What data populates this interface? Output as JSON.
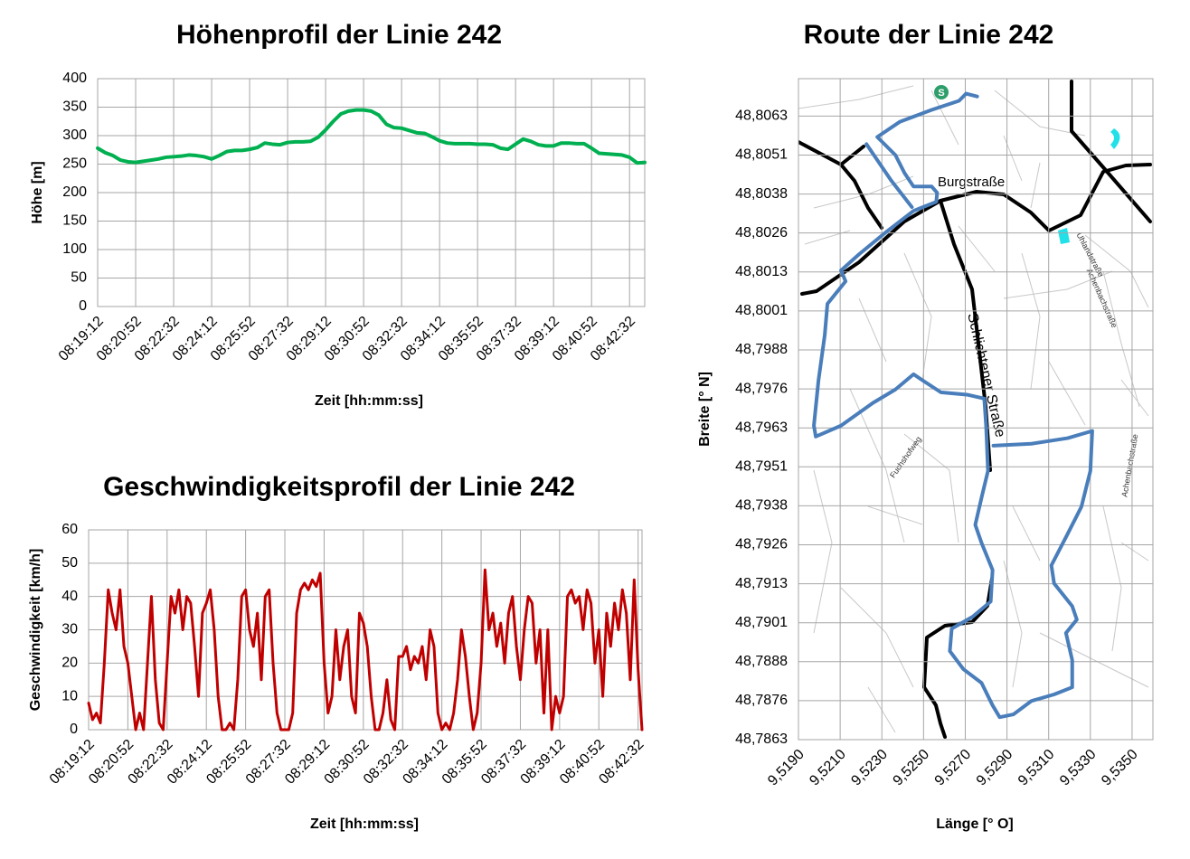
{
  "chart_data": [
    {
      "type": "line",
      "title": "Höhenprofil der Linie 242",
      "x_label": "Zeit [hh:mm:ss]",
      "y_label": "Höhe [m]",
      "categories": [
        "08:19:12",
        null,
        null,
        null,
        null,
        "08:20:52",
        null,
        null,
        null,
        null,
        "08:22:32",
        null,
        null,
        null,
        null,
        "08:24:12",
        null,
        null,
        null,
        null,
        "08:25:52",
        null,
        null,
        null,
        null,
        "08:27:32",
        null,
        null,
        null,
        null,
        "08:29:12",
        null,
        null,
        null,
        null,
        "08:30:52",
        null,
        null,
        null,
        null,
        "08:32:32",
        null,
        null,
        null,
        null,
        "08:34:12",
        null,
        null,
        null,
        null,
        "08:35:52",
        null,
        null,
        null,
        null,
        "08:37:32",
        null,
        null,
        null,
        null,
        "08:39:12",
        null,
        null,
        null,
        null,
        "08:40:52",
        null,
        null,
        null,
        null,
        "08:42:32",
        null,
        null
      ],
      "values": [
        278,
        270,
        265,
        257,
        254,
        253,
        255,
        257,
        259,
        262,
        263,
        264,
        266,
        265,
        263,
        259,
        265,
        272,
        274,
        274,
        276,
        279,
        287,
        285,
        284,
        288,
        289,
        289,
        290,
        297,
        310,
        325,
        338,
        343,
        345,
        345,
        343,
        336,
        320,
        314,
        313,
        309,
        305,
        304,
        298,
        291,
        287,
        286,
        286,
        286,
        285,
        285,
        284,
        278,
        276,
        285,
        294,
        290,
        284,
        282,
        282,
        287,
        287,
        286,
        286,
        278,
        269,
        268,
        267,
        266,
        262,
        252,
        253
      ],
      "color": "#00b050",
      "ylim": [
        0,
        400
      ],
      "yticks": [
        0,
        50,
        100,
        150,
        200,
        250,
        300,
        350,
        400
      ],
      "grid": true
    },
    {
      "type": "line",
      "title": "Geschwindigkeitsprofil  der Linie 242",
      "x_label": "Zeit [hh:mm:ss]",
      "y_label": "Geschwindigkeit [km/h]",
      "categories": [
        "08:19:12",
        null,
        null,
        null,
        null,
        null,
        null,
        null,
        null,
        null,
        "08:20:52",
        null,
        null,
        null,
        null,
        null,
        null,
        null,
        null,
        null,
        "08:22:32",
        null,
        null,
        null,
        null,
        null,
        null,
        null,
        null,
        null,
        "08:24:12",
        null,
        null,
        null,
        null,
        null,
        null,
        null,
        null,
        null,
        "08:25:52",
        null,
        null,
        null,
        null,
        null,
        null,
        null,
        null,
        null,
        "08:27:32",
        null,
        null,
        null,
        null,
        null,
        null,
        null,
        null,
        null,
        "08:29:12",
        null,
        null,
        null,
        null,
        null,
        null,
        null,
        null,
        null,
        "08:30:52",
        null,
        null,
        null,
        null,
        null,
        null,
        null,
        null,
        null,
        "08:32:32",
        null,
        null,
        null,
        null,
        null,
        null,
        null,
        null,
        null,
        "08:34:12",
        null,
        null,
        null,
        null,
        null,
        null,
        null,
        null,
        null,
        "08:35:52",
        null,
        null,
        null,
        null,
        null,
        null,
        null,
        null,
        null,
        "08:37:32",
        null,
        null,
        null,
        null,
        null,
        null,
        null,
        null,
        null,
        "08:39:12",
        null,
        null,
        null,
        null,
        null,
        null,
        null,
        null,
        null,
        "08:40:52",
        null,
        null,
        null,
        null,
        null,
        null,
        null,
        null,
        null,
        "08:42:32",
        null
      ],
      "values": [
        8,
        3,
        5,
        2,
        20,
        42,
        35,
        30,
        42,
        25,
        20,
        10,
        0,
        5,
        0,
        20,
        40,
        15,
        2,
        0,
        20,
        40,
        35,
        42,
        30,
        40,
        38,
        25,
        10,
        35,
        38,
        42,
        30,
        10,
        0,
        0,
        2,
        0,
        15,
        40,
        42,
        30,
        25,
        35,
        15,
        40,
        42,
        20,
        5,
        0,
        0,
        0,
        5,
        35,
        42,
        44,
        42,
        45,
        43,
        47,
        20,
        5,
        10,
        30,
        15,
        25,
        30,
        10,
        5,
        35,
        32,
        25,
        10,
        0,
        0,
        5,
        15,
        3,
        0,
        22,
        22,
        25,
        18,
        22,
        20,
        25,
        15,
        30,
        25,
        5,
        0,
        2,
        0,
        5,
        15,
        30,
        22,
        10,
        0,
        5,
        20,
        48,
        30,
        35,
        25,
        32,
        20,
        35,
        40,
        25,
        15,
        30,
        40,
        38,
        20,
        30,
        5,
        30,
        0,
        10,
        5,
        10,
        40,
        42,
        38,
        40,
        30,
        42,
        38,
        20,
        30,
        10,
        35,
        25,
        38,
        30,
        42,
        35,
        15,
        45,
        18,
        0
      ],
      "color": "#c00000",
      "ylim": [
        0,
        60
      ],
      "yticks": [
        0,
        10,
        20,
        30,
        40,
        50,
        60
      ],
      "grid": true
    },
    {
      "type": "line",
      "title": "Route der Linie 242",
      "x_label": "Länge [° O]",
      "y_label": "Breite [° N]",
      "x": [
        9.52757,
        9.52704,
        9.5267,
        9.52539,
        9.52387,
        9.52278,
        9.52365,
        9.52409,
        9.52452,
        9.52539,
        9.52565,
        9.52561,
        9.52452,
        9.52322,
        9.52191,
        9.52104,
        9.52126,
        9.52039,
        9.52026,
        9.51996,
        9.51974,
        9.51983,
        9.52104,
        9.52257,
        9.52365,
        9.52452,
        9.52496,
        9.52583,
        9.52713,
        9.52791,
        9.528,
        9.52809,
        9.52778,
        9.52748,
        9.52778,
        9.52831,
        9.52822,
        9.52735,
        9.52635,
        9.52626,
        9.52691,
        9.52778,
        9.52831,
        9.52865,
        9.52931,
        9.53017,
        9.53126,
        9.53213,
        9.53213,
        9.53183,
        9.53235,
        9.53213,
        9.53126,
        9.53113,
        9.53191,
        9.53257,
        9.533,
        9.53309,
        9.53191,
        9.53017,
        9.52835,
        null,
        9.52226,
        9.52344,
        9.52444
      ],
      "values": [
        48.80693,
        48.80702,
        48.80679,
        48.8065,
        48.80612,
        48.80563,
        48.80505,
        48.80447,
        48.80404,
        48.80404,
        48.80384,
        48.80355,
        48.80326,
        48.80259,
        48.80187,
        48.80135,
        48.801,
        48.80028,
        48.79927,
        48.79782,
        48.79637,
        48.79602,
        48.79637,
        48.7971,
        48.79753,
        48.79802,
        48.79782,
        48.79744,
        48.79736,
        48.79724,
        48.79637,
        48.79492,
        48.79406,
        48.79319,
        48.79261,
        48.79174,
        48.79073,
        48.79024,
        48.78986,
        48.78914,
        48.78856,
        48.78812,
        48.7874,
        48.78702,
        48.78711,
        48.78754,
        48.78775,
        48.78798,
        48.78885,
        48.78972,
        48.79015,
        48.79058,
        48.79131,
        48.79189,
        48.7929,
        48.79377,
        48.79492,
        48.7962,
        48.79597,
        48.79579,
        48.79573,
        null,
        48.8054,
        48.80424,
        48.80338
      ],
      "color": "#4a7ebb",
      "xlim": [
        9.519,
        9.536
      ],
      "ylim": [
        48.7863,
        48.8075
      ],
      "xticks": [
        {
          "value": 9.519,
          "label": "9,5190"
        },
        {
          "value": 9.521,
          "label": "9,5210"
        },
        {
          "value": 9.523,
          "label": "9,5230"
        },
        {
          "value": 9.525,
          "label": "9,5250"
        },
        {
          "value": 9.527,
          "label": "9,5270"
        },
        {
          "value": 9.529,
          "label": "9,5290"
        },
        {
          "value": 9.531,
          "label": "9,5310"
        },
        {
          "value": 9.533,
          "label": "9,5330"
        },
        {
          "value": 9.535,
          "label": "9,5350"
        }
      ],
      "yticks": [
        {
          "value": 48.7863,
          "label": "48,7863"
        },
        {
          "value": 48.78755,
          "label": "48,7876"
        },
        {
          "value": 48.7888,
          "label": "48,7888"
        },
        {
          "value": 48.79005,
          "label": "48,7901"
        },
        {
          "value": 48.7913,
          "label": "48,7913"
        },
        {
          "value": 48.79255,
          "label": "48,7926"
        },
        {
          "value": 48.7938,
          "label": "48,7938"
        },
        {
          "value": 48.79505,
          "label": "48,7951"
        },
        {
          "value": 48.7963,
          "label": "48,7963"
        },
        {
          "value": 48.79755,
          "label": "48,7976"
        },
        {
          "value": 48.7988,
          "label": "48,7988"
        },
        {
          "value": 48.80005,
          "label": "48,8001"
        },
        {
          "value": 48.8013,
          "label": "48,8013"
        },
        {
          "value": 48.80255,
          "label": "48,8026"
        },
        {
          "value": 48.8038,
          "label": "48,8038"
        },
        {
          "value": 48.80505,
          "label": "48,8051"
        },
        {
          "value": 48.8063,
          "label": "48,8063"
        }
      ],
      "grid": true,
      "annotations": [
        "Burgstraße",
        "Schlichtener Straße",
        "Fuchshofweg",
        "Uhlandstraße",
        "Achenbachstraße",
        "S"
      ]
    }
  ]
}
